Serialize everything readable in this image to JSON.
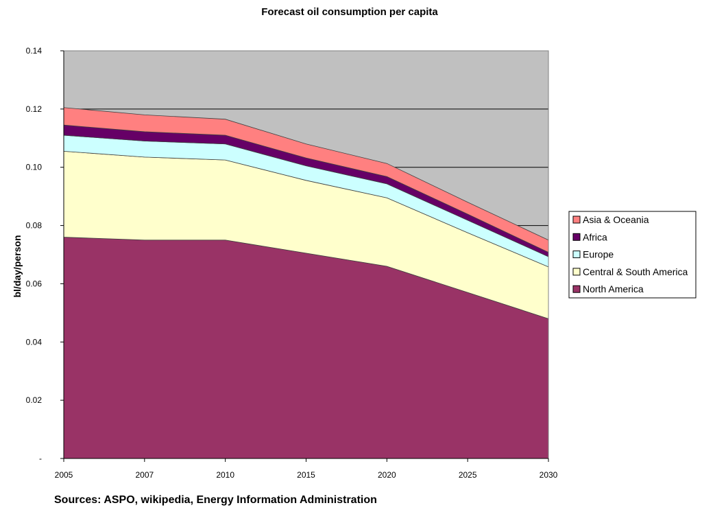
{
  "chart_data": {
    "type": "area",
    "stacked": true,
    "title": "Forecast oil consumption per capita",
    "ylabel": "bl/day/person",
    "xlabel": "",
    "source": "Sources: ASPO, wikipedia, Energy Information Administration",
    "categories": [
      "2005",
      "2007",
      "2010",
      "2015",
      "2020",
      "2025",
      "2030"
    ],
    "ylim": [
      0,
      0.14
    ],
    "yticks": [
      0,
      0.02,
      0.04,
      0.06,
      0.08,
      0.1,
      0.12,
      0.14
    ],
    "ytick_labels": [
      "-",
      "0.02",
      "0.04",
      "0.06",
      "0.08",
      "0.10",
      "0.12",
      "0.14"
    ],
    "grid": true,
    "plot_background": "#c0c0c0",
    "legend_position": "right",
    "series": [
      {
        "name": "North America",
        "color": "#993366",
        "values": [
          0.076,
          0.075,
          0.075,
          0.0705,
          0.066,
          0.057,
          0.048
        ]
      },
      {
        "name": "Central & South America",
        "color": "#ffffcc",
        "values": [
          0.0295,
          0.0285,
          0.0275,
          0.025,
          0.0235,
          0.0205,
          0.0178
        ]
      },
      {
        "name": "Europe",
        "color": "#ccffff",
        "values": [
          0.0055,
          0.0055,
          0.0055,
          0.005,
          0.0048,
          0.0043,
          0.0035
        ]
      },
      {
        "name": "Africa",
        "color": "#660066",
        "values": [
          0.0035,
          0.0032,
          0.003,
          0.0027,
          0.0025,
          0.0021,
          0.0015
        ]
      },
      {
        "name": "Asia & Oceania",
        "color": "#ff8080",
        "values": [
          0.006,
          0.0058,
          0.0055,
          0.0048,
          0.0045,
          0.0041,
          0.0042
        ]
      }
    ]
  }
}
